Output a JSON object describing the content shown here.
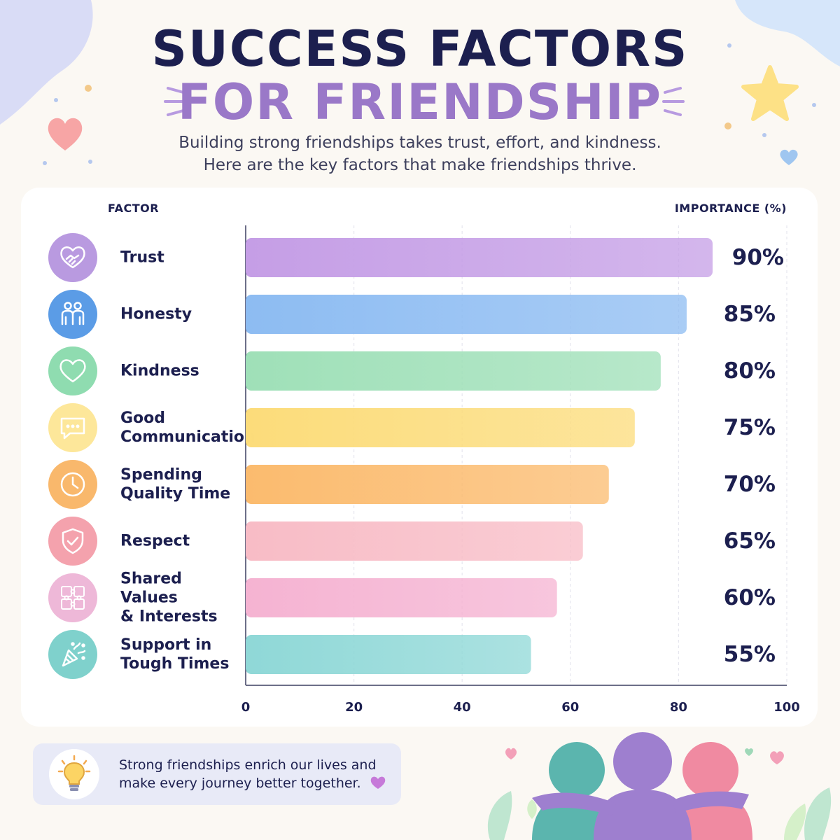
{
  "header": {
    "title_line1": "SUCCESS FACTORS",
    "title_line2": "FOR FRIENDSHIP",
    "subtitle_line1": "Building strong friendships takes trust, effort, and kindness.",
    "subtitle_line2": "Here are the key factors that make friendships thrive."
  },
  "columns": {
    "factor": "FACTOR",
    "importance": "IMPORTANCE (%)"
  },
  "chart_data": {
    "type": "bar",
    "orientation": "horizontal",
    "categories": [
      "Trust",
      "Honesty",
      "Kindness",
      "Good Communication",
      "Spending Quality Time",
      "Respect",
      "Shared Values & Interests",
      "Support in Tough Times"
    ],
    "category_lines": [
      [
        "Trust"
      ],
      [
        "Honesty"
      ],
      [
        "Kindness"
      ],
      [
        "Good",
        "Communication"
      ],
      [
        "Spending",
        "Quality Time"
      ],
      [
        "Respect"
      ],
      [
        "Shared Values",
        "& Interests"
      ],
      [
        "Support in",
        "Tough Times"
      ]
    ],
    "values": [
      90,
      85,
      80,
      75,
      70,
      65,
      60,
      55
    ],
    "value_labels": [
      "90%",
      "85%",
      "80%",
      "75%",
      "70%",
      "65%",
      "60%",
      "55%"
    ],
    "xlim": [
      0,
      100
    ],
    "xticks": [
      "0",
      "20",
      "40",
      "60",
      "80",
      "100"
    ],
    "grid": true,
    "colors": [
      "#c59ee6",
      "#8dbcf2",
      "#9fe0b8",
      "#fcdc7a",
      "#fbbb6e",
      "#f8bcc6",
      "#f5b3d2",
      "#8fd8d7"
    ],
    "icons": [
      "handshake-heart-icon",
      "two-people-icon",
      "heart-icon",
      "chat-bubble-icon",
      "clock-icon",
      "shield-check-icon",
      "puzzle-icon",
      "party-popper-icon"
    ],
    "icon_colors": [
      "#b99ae0",
      "#5b9ce6",
      "#8fdcb0",
      "#fde79a",
      "#f9b86c",
      "#f4a2ad",
      "#eeb8d8",
      "#7fd1cc"
    ]
  },
  "footer": {
    "line1": "Strong friendships enrich our lives and",
    "line2": "make every journey better together.",
    "icon": "lightbulb-icon"
  }
}
